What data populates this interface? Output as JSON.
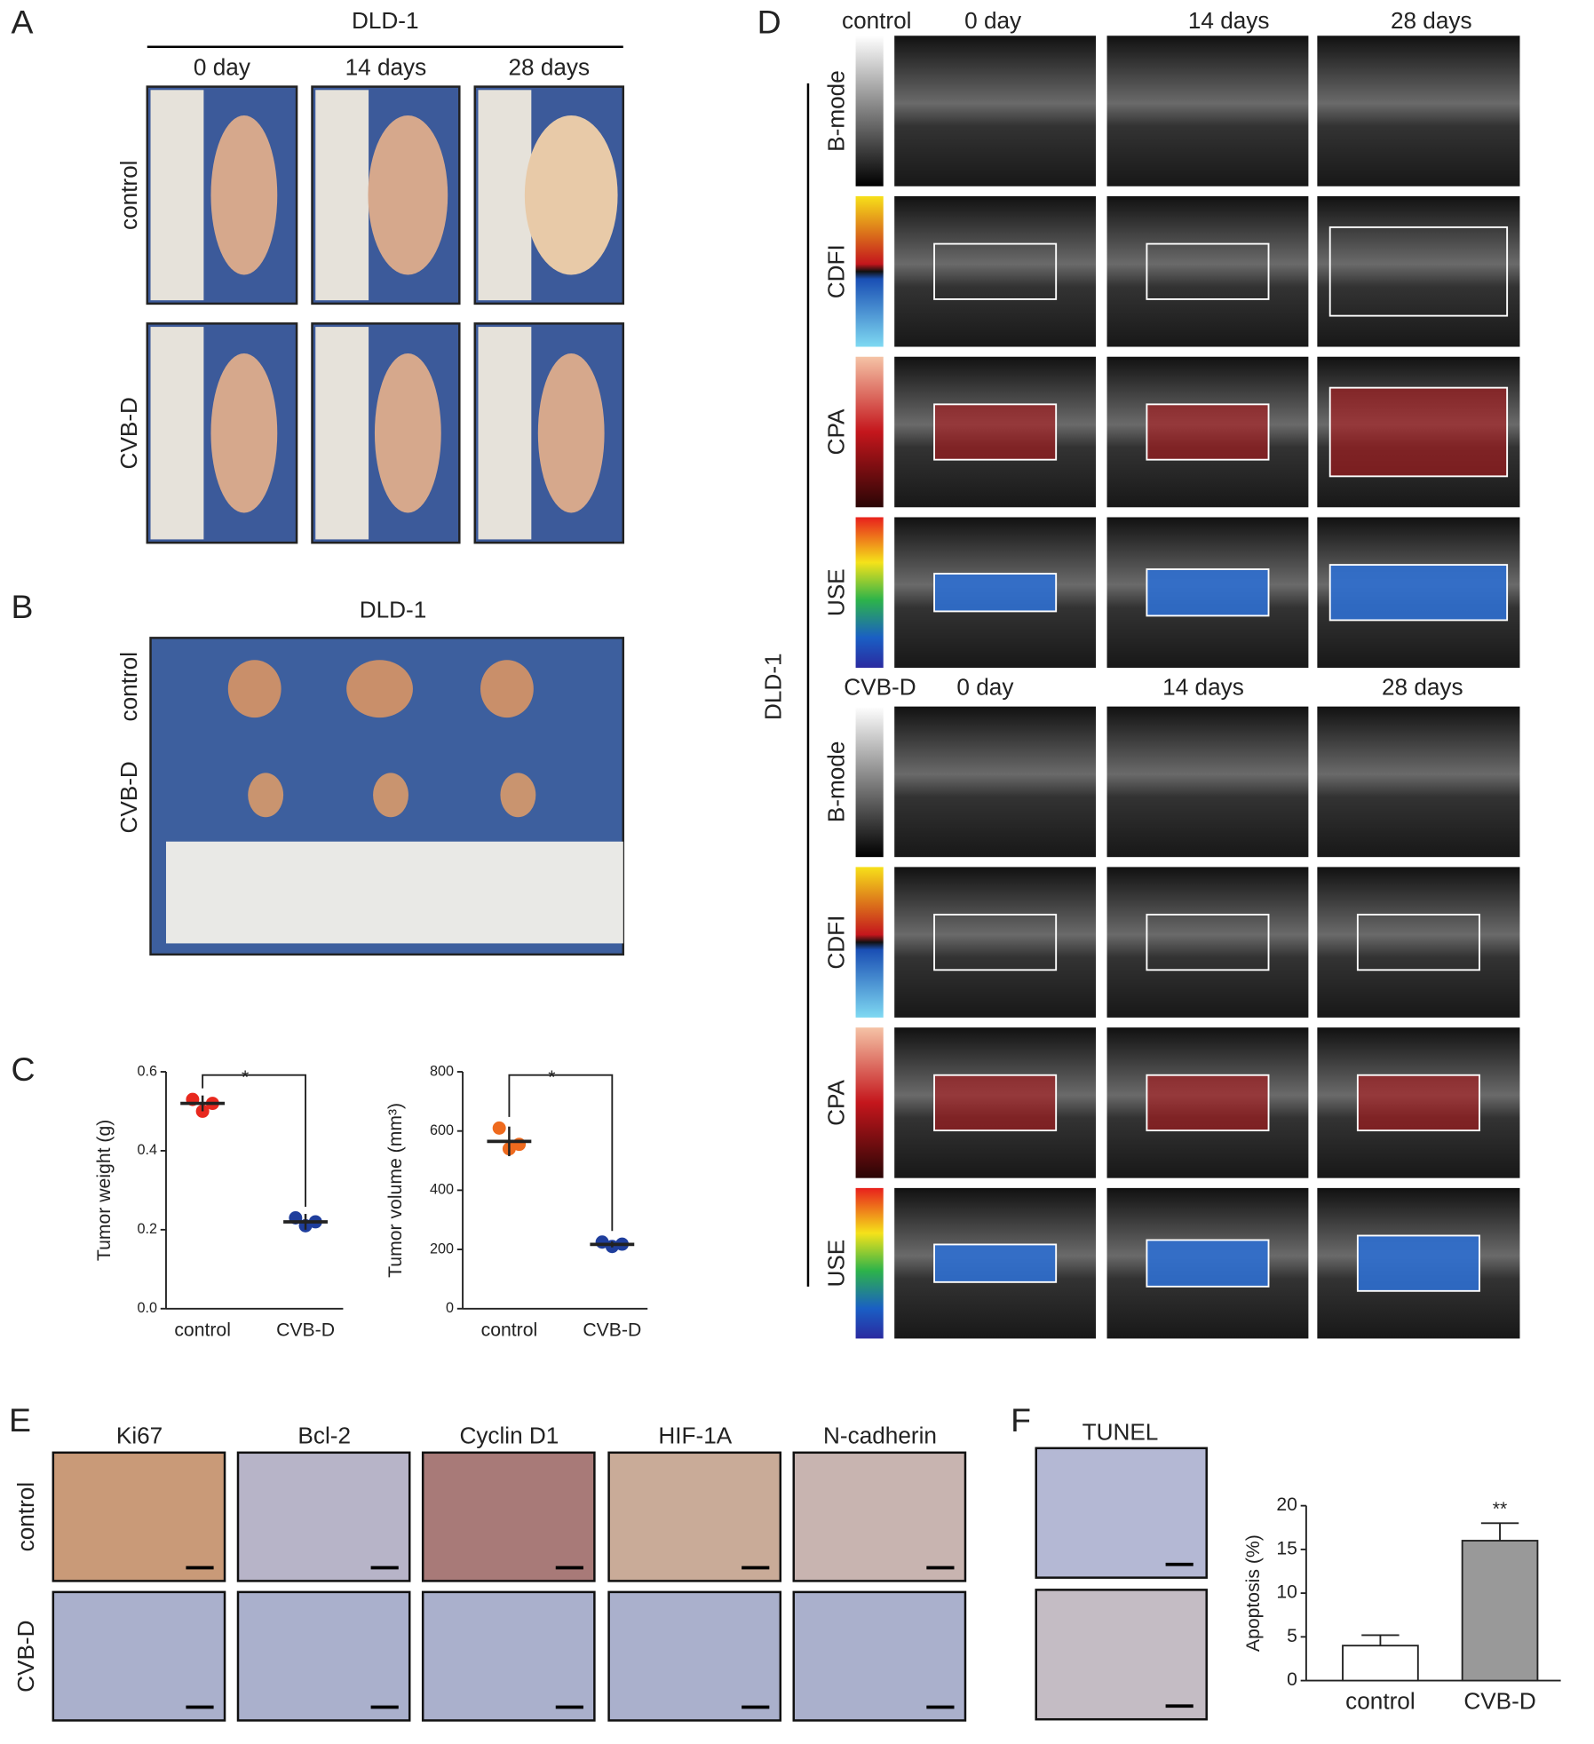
{
  "panels": {
    "A": {
      "label": "A",
      "title": "DLD-1",
      "columns": [
        "0 day",
        "14 days",
        "28 days"
      ],
      "rows": [
        "control",
        "CVB-D"
      ]
    },
    "B": {
      "label": "B",
      "title": "DLD-1",
      "rows": [
        "control",
        "CVB-D"
      ]
    },
    "C": {
      "label": "C"
    },
    "D": {
      "label": "D",
      "group_label": "DLD-1",
      "rows": [
        "B-mode",
        "CDFI",
        "CPA",
        "USE"
      ],
      "blocks": [
        {
          "group": "control",
          "columns": [
            "0 day",
            "14 days",
            "28 days"
          ]
        },
        {
          "group": "CVB-D",
          "columns": [
            "0 day",
            "14 days",
            "28 days"
          ]
        }
      ]
    },
    "E": {
      "label": "E",
      "stains": [
        "Ki67",
        "Bcl-2",
        "Cyclin D1",
        "HIF-1A",
        "N-cadherin"
      ],
      "rows": [
        "control",
        "CVB-D"
      ]
    },
    "F": {
      "label": "F",
      "title": "TUNEL"
    }
  },
  "chart_data": [
    {
      "type": "dot",
      "y_label": "Tumor weight (g)",
      "categories": [
        "control",
        "CVB-D"
      ],
      "points": [
        [
          0.53,
          0.5,
          0.52
        ],
        [
          0.23,
          0.21,
          0.22
        ]
      ],
      "means": [
        0.52,
        0.22
      ],
      "errors": [
        0.02,
        0.02
      ],
      "colors": [
        "#e8281e",
        "#1f3e9c"
      ],
      "annotation": "*",
      "ylim": [
        0,
        0.6
      ],
      "yticks": [
        {
          "value": 0,
          "label": "0.0"
        },
        0.2,
        0.4,
        0.6
      ]
    },
    {
      "type": "dot",
      "y_label": "Tumor volume (mm³)",
      "categories": [
        "control",
        "CVB-D"
      ],
      "points": [
        [
          610,
          540,
          555
        ],
        [
          225,
          210,
          218
        ]
      ],
      "means": [
        565,
        217
      ],
      "errors": [
        50,
        10
      ],
      "colors": [
        "#ee6a1e",
        "#1f3e9c"
      ],
      "annotation": "*",
      "ylim": [
        0,
        800
      ],
      "yticks": [
        0,
        200,
        400,
        600,
        800
      ]
    },
    {
      "type": "bar",
      "y_label": "Apoptosis (%)",
      "categories": [
        "control",
        "CVB-D"
      ],
      "values": [
        4,
        16
      ],
      "errors": [
        1.2,
        2
      ],
      "colors": [
        "#ffffff",
        "#999999"
      ],
      "annotation": "**",
      "ylim": [
        0,
        20
      ],
      "yticks": [
        0,
        5,
        10,
        15,
        20
      ]
    }
  ]
}
